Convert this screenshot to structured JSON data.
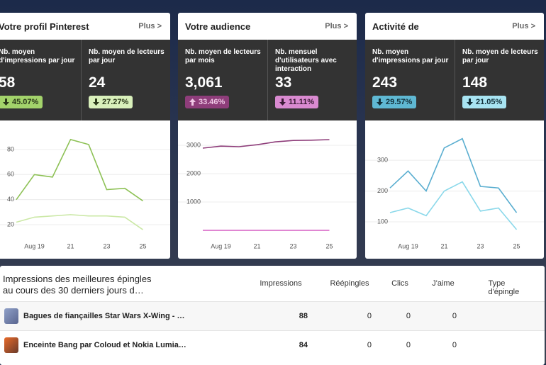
{
  "cards": [
    {
      "title": "Votre profil Pinterest",
      "more": "Plus >",
      "stats": [
        {
          "label": "Nb. moyen d'impressions par jour",
          "value": "58",
          "change": "45.07%",
          "trend": "down",
          "badge_color": "#a3d36b",
          "badge_text_color": "#2b3a1a"
        },
        {
          "label": "Nb. moyen de lecteurs par jour",
          "value": "24",
          "change": "27.27%",
          "trend": "down",
          "badge_color": "#d9f0bb",
          "badge_text_color": "#2b3a1a"
        }
      ]
    },
    {
      "title": "Votre audience",
      "more": "Plus >",
      "stats": [
        {
          "label": "Nb. moyen de lecteurs par mois",
          "value": "3,061",
          "change": "33.46%",
          "trend": "up",
          "badge_color": "#8e3d7a",
          "badge_text_color": "#f0c8e6"
        },
        {
          "label": "Nb. mensuel d'utilisateurs avec interaction",
          "value": "33",
          "change": "11.11%",
          "trend": "down",
          "badge_color": "#d98ad0",
          "badge_text_color": "#3a1a35"
        }
      ]
    },
    {
      "title": "Activité de",
      "more": "Plus >",
      "stats": [
        {
          "label": "Nb. moyen d'impressions par jour",
          "value": "243",
          "change": "29.57%",
          "trend": "down",
          "badge_color": "#5fb8d3",
          "badge_text_color": "#12303a"
        },
        {
          "label": "Nb. moyen de lecteurs par jour",
          "value": "148",
          "change": "21.05%",
          "trend": "down",
          "badge_color": "#a8e4f2",
          "badge_text_color": "#12303a"
        }
      ]
    }
  ],
  "chart_data": [
    {
      "type": "line",
      "categories": [
        null,
        "Aug 19",
        null,
        "21",
        null,
        "23",
        null,
        "25"
      ],
      "ylim": [
        7,
        97.5
      ],
      "yticks": [
        20,
        40,
        60,
        80
      ],
      "grid": true,
      "series": [
        {
          "color": "#8dc155",
          "values": [
            40,
            60,
            58,
            88,
            84,
            48,
            49,
            39
          ]
        },
        {
          "color": "#cbe8a6",
          "values": [
            22,
            26,
            27,
            28,
            27,
            27,
            26,
            16
          ]
        }
      ]
    },
    {
      "type": "line",
      "categories": [
        null,
        "Aug 19",
        null,
        "21",
        null,
        "23",
        null,
        "25"
      ],
      "ylim": [
        -375,
        3625
      ],
      "yticks": [
        1000,
        2000,
        3000
      ],
      "grid": true,
      "series": [
        {
          "color": "#8e3d7a",
          "values": [
            2900,
            2970,
            2950,
            3020,
            3120,
            3170,
            3180,
            3200
          ]
        },
        {
          "color": "#d65fc4",
          "values": [
            0,
            0,
            0,
            0,
            0,
            0,
            0,
            0
          ]
        }
      ]
    },
    {
      "type": "line",
      "categories": [
        null,
        "Aug 19",
        null,
        "21",
        null,
        "23",
        null,
        "25"
      ],
      "ylim": [
        38,
        406
      ],
      "yticks": [
        100,
        200,
        300
      ],
      "grid": true,
      "series": [
        {
          "color": "#5aaed0",
          "values": [
            210,
            265,
            200,
            340,
            370,
            215,
            210,
            130
          ]
        },
        {
          "color": "#8ad8ea",
          "values": [
            130,
            145,
            120,
            200,
            230,
            135,
            145,
            75
          ]
        }
      ]
    }
  ],
  "table": {
    "title": "Impressions des meilleures épingles",
    "subtitle": "au cours des 30 derniers jours d…",
    "columns": [
      "Impressions",
      "Réépingles",
      "Clics",
      "J'aime",
      "Type d'épingle"
    ],
    "rows": [
      [
        "Bagues de fiançailles Star Wars X-Wing - …",
        88,
        0,
        0,
        0
      ],
      [
        "Enceinte Bang par Coloud et Nokia Lumia…",
        84,
        0,
        0,
        0
      ]
    ]
  }
}
